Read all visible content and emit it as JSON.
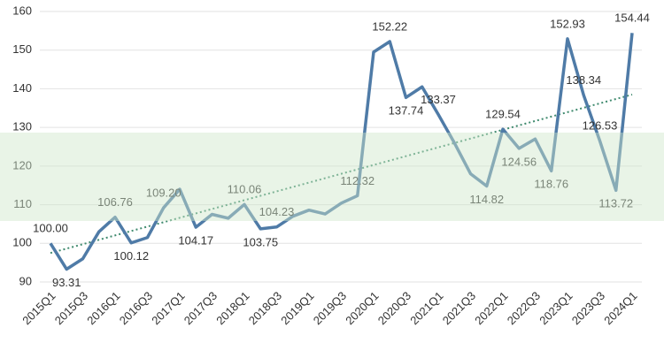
{
  "chart_data": {
    "type": "line",
    "categories": [
      "2015Q1",
      null,
      "2015Q3",
      null,
      "2016Q1",
      null,
      "2016Q3",
      null,
      "2017Q1",
      null,
      "2017Q3",
      null,
      "2018Q1",
      null,
      "2018Q3",
      null,
      "2019Q1",
      null,
      "2019Q3",
      null,
      "2020Q1",
      null,
      "2020Q3",
      null,
      "2021Q1",
      null,
      "2021Q3",
      null,
      "2022Q1",
      null,
      "2022Q3",
      null,
      "2023Q1",
      null,
      "2023Q3",
      null,
      "2024Q1"
    ],
    "series": [
      {
        "color": "#4f7ba7",
        "values": [
          100.0,
          93.31,
          96,
          103,
          106.76,
          100.12,
          101.5,
          109.2,
          114,
          104.17,
          107.5,
          106.5,
          110.06,
          103.75,
          104.23,
          107,
          108.6,
          107.6,
          110.4,
          112.32,
          149.5,
          152.22,
          137.74,
          140.5,
          133.37,
          126,
          118,
          114.82,
          129.54,
          124.56,
          127,
          118.76,
          152.93,
          138.34,
          126.53,
          113.72,
          154.44
        ],
        "value_labels": [
          "100.00",
          "93.31",
          null,
          null,
          "106.76",
          "100.12",
          null,
          "109.20",
          null,
          "104.17",
          null,
          null,
          "110.06",
          "103.75",
          "104.23",
          null,
          null,
          null,
          null,
          "112.32",
          null,
          "152.22",
          "137.74",
          null,
          "133.37",
          null,
          null,
          "114.82",
          "129.54",
          "124.56",
          null,
          "118.76",
          "152.93",
          "138.34",
          "126.53",
          "113.72",
          "154.44"
        ]
      }
    ],
    "trendline": {
      "start": 97.5,
      "end": 138.5,
      "color": "#3f8a6e"
    },
    "ylim": [
      90,
      160
    ],
    "yticks": [
      90,
      100,
      110,
      120,
      130,
      140,
      150,
      160
    ],
    "grid": true
  }
}
